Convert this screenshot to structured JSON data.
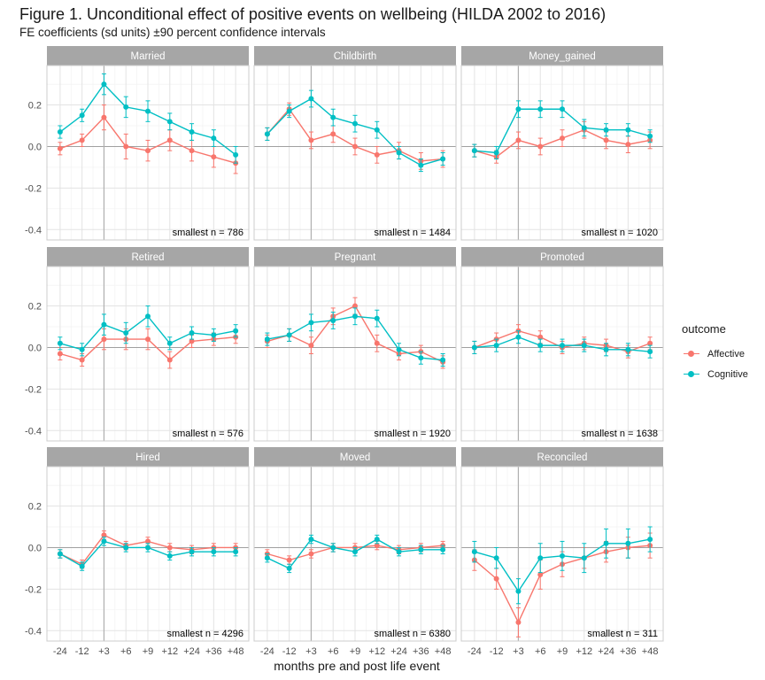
{
  "title": "Figure 1. Unconditional effect of positive events on wellbeing (HILDA 2002 to 2016)",
  "subtitle": "FE coefficients (sd units) ±90 percent confidence intervals",
  "chart_data": {
    "type": "line",
    "facet_layout": "3x3",
    "x": [
      "-24",
      "-12",
      "+3",
      "+6",
      "+9",
      "+12",
      "+24",
      "+36",
      "+48"
    ],
    "event_at": "+3",
    "xlabel": "months pre and post life event",
    "ylabel": "",
    "ylim": [
      -0.45,
      0.39
    ],
    "yticks": [
      -0.4,
      -0.2,
      0.0,
      0.2
    ],
    "ytick_labels": [
      "-0.4",
      "-0.2",
      "0.0",
      "0.2"
    ],
    "grid": true,
    "legend": {
      "title": "outcome",
      "position": "right",
      "entries": [
        {
          "name": "Affective",
          "color": "#f8766d"
        },
        {
          "name": "Cognitive",
          "color": "#00bfc4"
        }
      ]
    },
    "panels": [
      {
        "label": "Married",
        "note": "smallest n = 786",
        "series": [
          {
            "name": "Affective",
            "values": [
              -0.01,
              0.03,
              0.14,
              0.0,
              -0.02,
              0.03,
              -0.02,
              -0.05,
              -0.08
            ],
            "ci": [
              [
                -0.04,
                0.02
              ],
              [
                0.0,
                0.06
              ],
              [
                0.08,
                0.2
              ],
              [
                -0.06,
                0.06
              ],
              [
                -0.07,
                0.03
              ],
              [
                -0.02,
                0.08
              ],
              [
                -0.07,
                0.03
              ],
              [
                -0.1,
                0.0
              ],
              [
                -0.13,
                -0.04
              ]
            ]
          },
          {
            "name": "Cognitive",
            "values": [
              0.07,
              0.15,
              0.3,
              0.19,
              0.17,
              0.12,
              0.07,
              0.04,
              -0.04
            ],
            "ci": [
              [
                0.04,
                0.1
              ],
              [
                0.12,
                0.18
              ],
              [
                0.25,
                0.35
              ],
              [
                0.14,
                0.24
              ],
              [
                0.12,
                0.22
              ],
              [
                0.08,
                0.16
              ],
              [
                0.03,
                0.11
              ],
              [
                0.0,
                0.08
              ],
              [
                -0.08,
                0.0
              ]
            ]
          }
        ]
      },
      {
        "label": "Childbirth",
        "note": "smallest n = 1484",
        "series": [
          {
            "name": "Affective",
            "values": [
              0.06,
              0.18,
              0.03,
              0.06,
              0.0,
              -0.04,
              -0.02,
              -0.07,
              -0.06
            ],
            "ci": [
              [
                0.03,
                0.09
              ],
              [
                0.15,
                0.21
              ],
              [
                -0.01,
                0.07
              ],
              [
                0.02,
                0.1
              ],
              [
                -0.04,
                0.04
              ],
              [
                -0.08,
                0.0
              ],
              [
                -0.06,
                0.02
              ],
              [
                -0.11,
                -0.03
              ],
              [
                -0.1,
                -0.02
              ]
            ]
          },
          {
            "name": "Cognitive",
            "values": [
              0.06,
              0.17,
              0.23,
              0.14,
              0.11,
              0.08,
              -0.03,
              -0.09,
              -0.06
            ],
            "ci": [
              [
                0.03,
                0.09
              ],
              [
                0.14,
                0.2
              ],
              [
                0.19,
                0.27
              ],
              [
                0.1,
                0.18
              ],
              [
                0.07,
                0.15
              ],
              [
                0.04,
                0.12
              ],
              [
                -0.06,
                0.0
              ],
              [
                -0.12,
                -0.06
              ],
              [
                -0.09,
                -0.03
              ]
            ]
          }
        ]
      },
      {
        "label": "Money_gained",
        "note": "smallest n = 1020",
        "series": [
          {
            "name": "Affective",
            "values": [
              -0.02,
              -0.05,
              0.03,
              0.0,
              0.04,
              0.08,
              0.03,
              0.01,
              0.03
            ],
            "ci": [
              [
                -0.05,
                0.01
              ],
              [
                -0.08,
                -0.02
              ],
              [
                -0.01,
                0.07
              ],
              [
                -0.04,
                0.04
              ],
              [
                0.0,
                0.08
              ],
              [
                0.04,
                0.12
              ],
              [
                -0.01,
                0.07
              ],
              [
                -0.03,
                0.05
              ],
              [
                -0.01,
                0.07
              ]
            ]
          },
          {
            "name": "Cognitive",
            "values": [
              -0.02,
              -0.03,
              0.18,
              0.18,
              0.18,
              0.09,
              0.08,
              0.08,
              0.05
            ],
            "ci": [
              [
                -0.05,
                0.01
              ],
              [
                -0.06,
                0.0
              ],
              [
                0.14,
                0.22
              ],
              [
                0.14,
                0.22
              ],
              [
                0.14,
                0.22
              ],
              [
                0.05,
                0.13
              ],
              [
                0.05,
                0.11
              ],
              [
                0.05,
                0.11
              ],
              [
                0.02,
                0.08
              ]
            ]
          }
        ]
      },
      {
        "label": "Retired",
        "note": "smallest n = 576",
        "series": [
          {
            "name": "Affective",
            "values": [
              -0.03,
              -0.06,
              0.04,
              0.04,
              0.04,
              -0.06,
              0.03,
              0.04,
              0.05
            ],
            "ci": [
              [
                -0.06,
                0.0
              ],
              [
                -0.09,
                -0.03
              ],
              [
                -0.01,
                0.09
              ],
              [
                -0.01,
                0.09
              ],
              [
                -0.01,
                0.09
              ],
              [
                -0.1,
                -0.02
              ],
              [
                0.0,
                0.06
              ],
              [
                0.01,
                0.07
              ],
              [
                0.02,
                0.08
              ]
            ]
          },
          {
            "name": "Cognitive",
            "values": [
              0.02,
              -0.01,
              0.11,
              0.07,
              0.15,
              0.02,
              0.07,
              0.06,
              0.08
            ],
            "ci": [
              [
                -0.01,
                0.05
              ],
              [
                -0.04,
                0.02
              ],
              [
                0.06,
                0.16
              ],
              [
                0.02,
                0.12
              ],
              [
                0.1,
                0.2
              ],
              [
                -0.01,
                0.05
              ],
              [
                0.04,
                0.1
              ],
              [
                0.03,
                0.09
              ],
              [
                0.05,
                0.11
              ]
            ]
          }
        ]
      },
      {
        "label": "Pregnant",
        "note": "smallest n = 1920",
        "series": [
          {
            "name": "Affective",
            "values": [
              0.03,
              0.06,
              0.01,
              0.15,
              0.2,
              0.02,
              -0.03,
              -0.02,
              -0.07
            ],
            "ci": [
              [
                0.0,
                0.06
              ],
              [
                0.03,
                0.09
              ],
              [
                -0.03,
                0.05
              ],
              [
                0.11,
                0.19
              ],
              [
                0.16,
                0.24
              ],
              [
                -0.02,
                0.06
              ],
              [
                -0.06,
                0.0
              ],
              [
                -0.05,
                0.01
              ],
              [
                -0.1,
                -0.04
              ]
            ]
          },
          {
            "name": "Cognitive",
            "values": [
              0.04,
              0.06,
              0.12,
              0.13,
              0.15,
              0.14,
              -0.01,
              -0.05,
              -0.06
            ],
            "ci": [
              [
                0.01,
                0.07
              ],
              [
                0.03,
                0.09
              ],
              [
                0.08,
                0.16
              ],
              [
                0.09,
                0.17
              ],
              [
                0.11,
                0.19
              ],
              [
                0.1,
                0.18
              ],
              [
                -0.04,
                0.02
              ],
              [
                -0.08,
                -0.02
              ],
              [
                -0.09,
                -0.03
              ]
            ]
          }
        ]
      },
      {
        "label": "Promoted",
        "note": "smallest n = 1638",
        "series": [
          {
            "name": "Affective",
            "values": [
              0.0,
              0.04,
              0.08,
              0.05,
              0.0,
              0.02,
              0.01,
              -0.02,
              0.02
            ],
            "ci": [
              [
                -0.03,
                0.03
              ],
              [
                0.01,
                0.07
              ],
              [
                0.05,
                0.11
              ],
              [
                0.02,
                0.08
              ],
              [
                -0.03,
                0.03
              ],
              [
                -0.01,
                0.05
              ],
              [
                -0.02,
                0.04
              ],
              [
                -0.05,
                0.01
              ],
              [
                -0.01,
                0.05
              ]
            ]
          },
          {
            "name": "Cognitive",
            "values": [
              0.0,
              0.01,
              0.05,
              0.01,
              0.01,
              0.01,
              -0.01,
              -0.01,
              -0.02
            ],
            "ci": [
              [
                -0.03,
                0.03
              ],
              [
                -0.02,
                0.04
              ],
              [
                0.02,
                0.08
              ],
              [
                -0.02,
                0.04
              ],
              [
                -0.02,
                0.04
              ],
              [
                -0.02,
                0.04
              ],
              [
                -0.04,
                0.02
              ],
              [
                -0.04,
                0.02
              ],
              [
                -0.05,
                0.01
              ]
            ]
          }
        ]
      },
      {
        "label": "Hired",
        "note": "smallest n = 4296",
        "series": [
          {
            "name": "Affective",
            "values": [
              -0.03,
              -0.08,
              0.06,
              0.01,
              0.03,
              0.0,
              -0.01,
              0.0,
              0.0
            ],
            "ci": [
              [
                -0.05,
                -0.01
              ],
              [
                -0.1,
                -0.06
              ],
              [
                0.04,
                0.08
              ],
              [
                -0.01,
                0.03
              ],
              [
                0.01,
                0.05
              ],
              [
                -0.02,
                0.02
              ],
              [
                -0.03,
                0.01
              ],
              [
                -0.02,
                0.02
              ],
              [
                -0.02,
                0.02
              ]
            ]
          },
          {
            "name": "Cognitive",
            "values": [
              -0.03,
              -0.09,
              0.03,
              0.0,
              0.0,
              -0.04,
              -0.02,
              -0.02,
              -0.02
            ],
            "ci": [
              [
                -0.05,
                -0.01
              ],
              [
                -0.11,
                -0.07
              ],
              [
                0.01,
                0.05
              ],
              [
                -0.02,
                0.02
              ],
              [
                -0.02,
                0.02
              ],
              [
                -0.06,
                -0.02
              ],
              [
                -0.04,
                0.0
              ],
              [
                -0.04,
                0.0
              ],
              [
                -0.04,
                0.0
              ]
            ]
          }
        ]
      },
      {
        "label": "Moved",
        "note": "smallest n = 6380",
        "series": [
          {
            "name": "Affective",
            "values": [
              -0.03,
              -0.06,
              -0.03,
              0.0,
              0.0,
              0.01,
              -0.01,
              0.0,
              0.01
            ],
            "ci": [
              [
                -0.05,
                -0.01
              ],
              [
                -0.08,
                -0.04
              ],
              [
                -0.05,
                -0.01
              ],
              [
                -0.02,
                0.02
              ],
              [
                -0.02,
                0.02
              ],
              [
                -0.01,
                0.03
              ],
              [
                -0.03,
                0.01
              ],
              [
                -0.02,
                0.02
              ],
              [
                -0.01,
                0.03
              ]
            ]
          },
          {
            "name": "Cognitive",
            "values": [
              -0.05,
              -0.1,
              0.04,
              0.0,
              -0.02,
              0.04,
              -0.02,
              -0.01,
              -0.01
            ],
            "ci": [
              [
                -0.07,
                -0.03
              ],
              [
                -0.12,
                -0.08
              ],
              [
                0.02,
                0.06
              ],
              [
                -0.02,
                0.02
              ],
              [
                -0.04,
                0.0
              ],
              [
                0.02,
                0.06
              ],
              [
                -0.04,
                0.0
              ],
              [
                -0.03,
                0.01
              ],
              [
                -0.03,
                0.01
              ]
            ]
          }
        ]
      },
      {
        "label": "Reconciled",
        "note": "smallest n = 311",
        "series": [
          {
            "name": "Affective",
            "values": [
              -0.06,
              -0.15,
              -0.36,
              -0.13,
              -0.08,
              -0.05,
              -0.02,
              0.0,
              0.01
            ],
            "ci": [
              [
                -0.11,
                -0.01
              ],
              [
                -0.2,
                -0.1
              ],
              [
                -0.43,
                -0.29
              ],
              [
                -0.2,
                -0.06
              ],
              [
                -0.14,
                -0.02
              ],
              [
                -0.1,
                0.0
              ],
              [
                -0.07,
                0.03
              ],
              [
                -0.05,
                0.05
              ],
              [
                -0.05,
                0.07
              ]
            ]
          },
          {
            "name": "Cognitive",
            "values": [
              -0.02,
              -0.05,
              -0.21,
              -0.05,
              -0.04,
              -0.05,
              0.02,
              0.02,
              0.04
            ],
            "ci": [
              [
                -0.07,
                0.03
              ],
              [
                -0.1,
                0.0
              ],
              [
                -0.27,
                -0.15
              ],
              [
                -0.12,
                0.02
              ],
              [
                -0.11,
                0.03
              ],
              [
                -0.12,
                0.02
              ],
              [
                -0.05,
                0.09
              ],
              [
                -0.05,
                0.09
              ],
              [
                -0.02,
                0.1
              ]
            ]
          }
        ]
      }
    ]
  }
}
